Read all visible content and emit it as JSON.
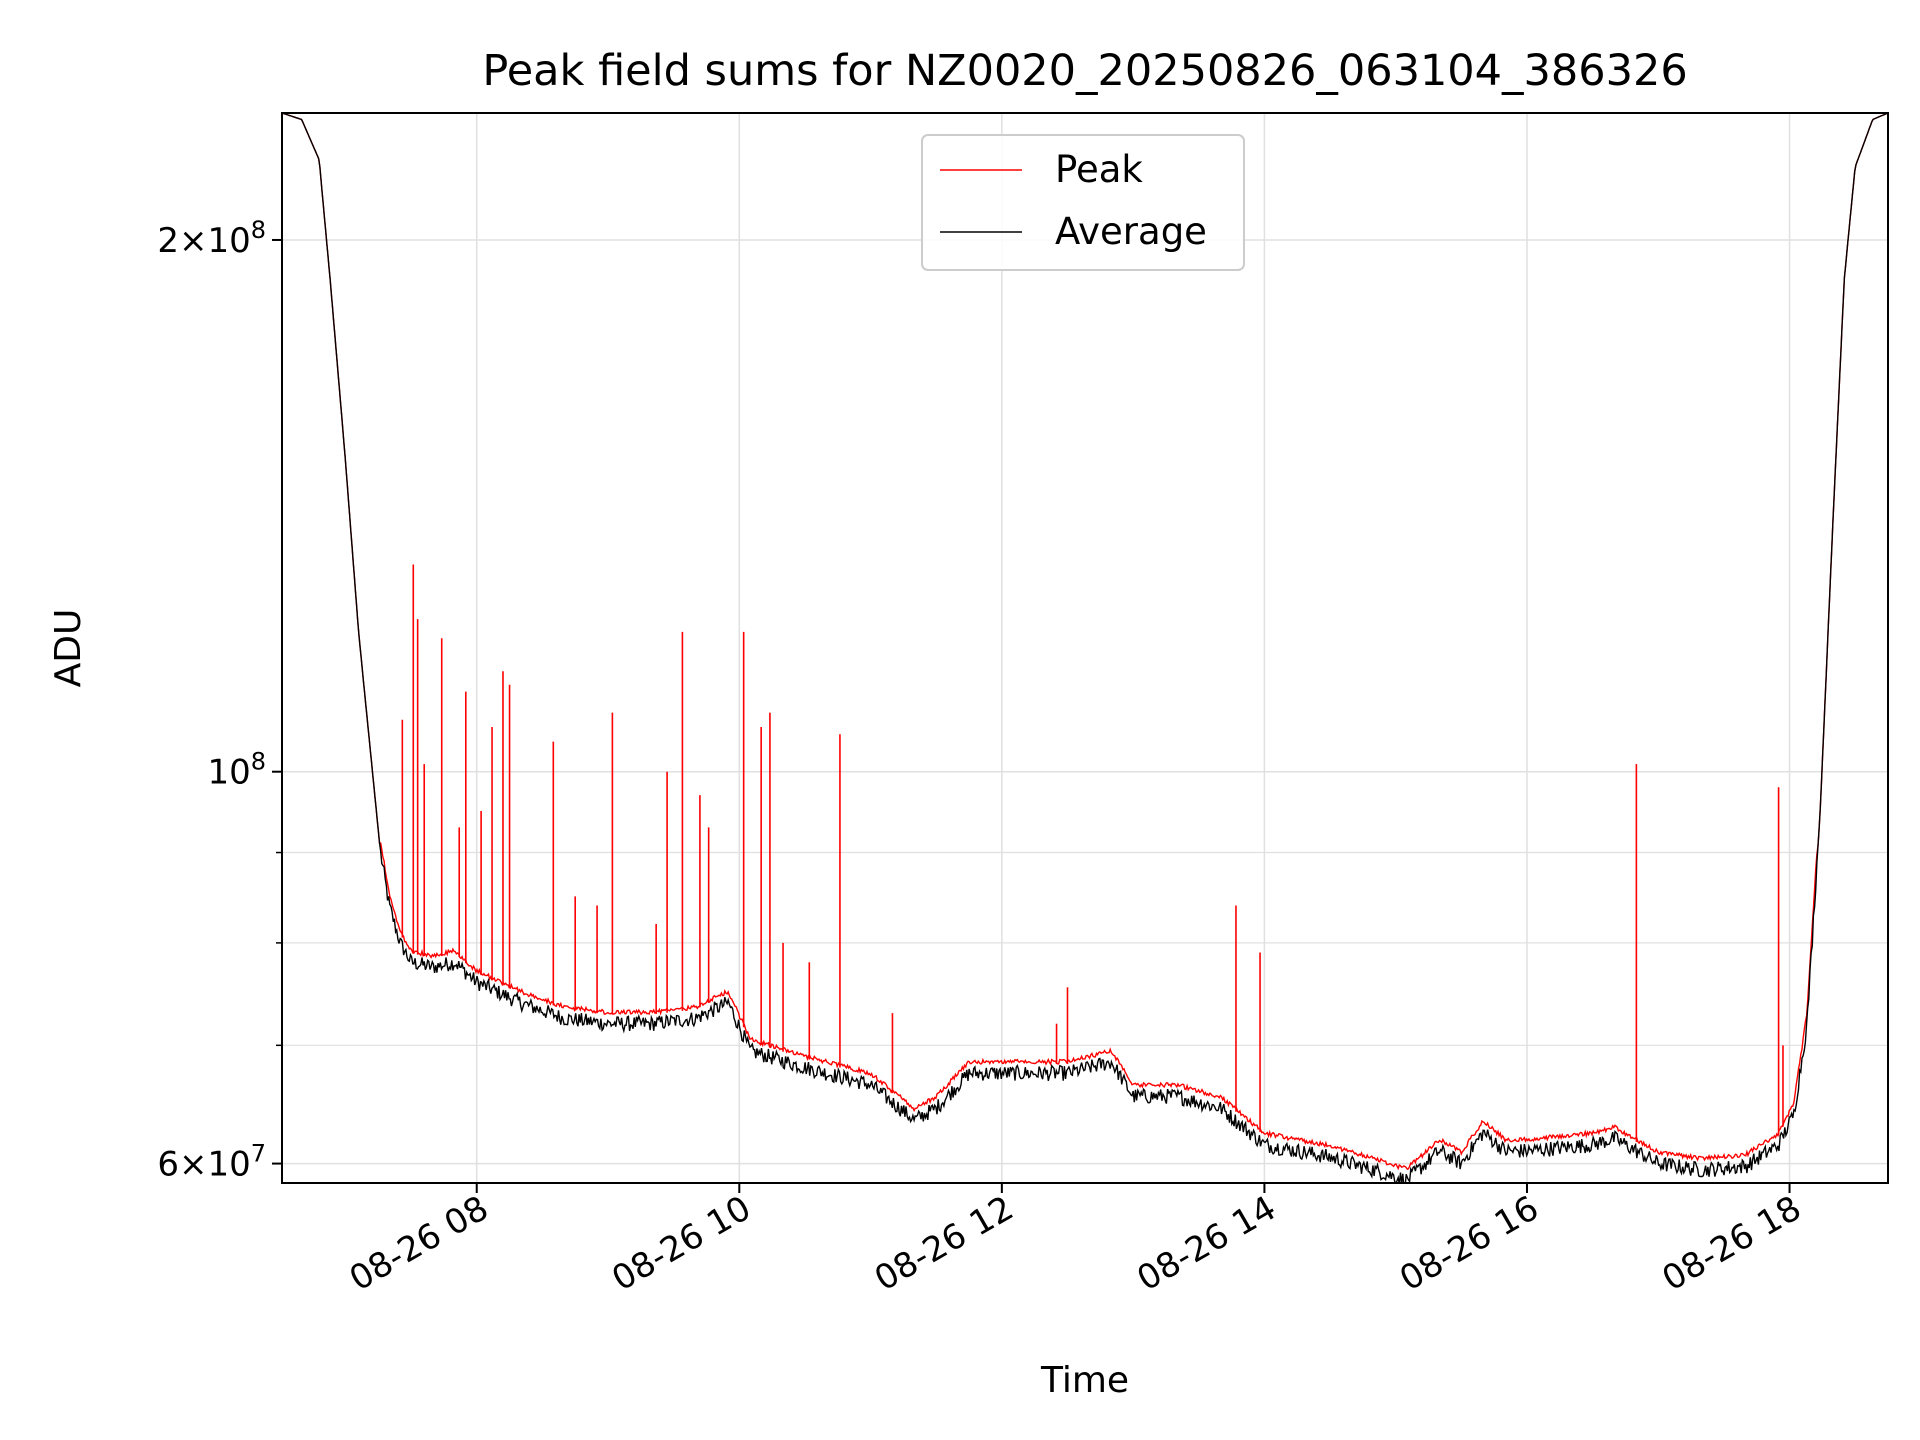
{
  "chart_data": {
    "type": "line",
    "title": "Peak field sums for NZ0020_20250826_063104_386326",
    "xlabel": "Time",
    "ylabel": "ADU",
    "yscale": "log",
    "xlim": [
      "2025-08-26 06:31",
      "2025-08-26 18:45"
    ],
    "ylim": [
      58500000,
      236000000
    ],
    "grid": true,
    "legend": {
      "placement": "top-center",
      "entries": [
        "Peak",
        "Average"
      ]
    },
    "colors": {
      "Peak": "#ff0000",
      "Average": "#000000",
      "grid": "#e0e0e0"
    },
    "x_ticks": [
      {
        "t": "2025-08-26 08:00",
        "label": "08-26 08"
      },
      {
        "t": "2025-08-26 10:00",
        "label": "08-26 10"
      },
      {
        "t": "2025-08-26 12:00",
        "label": "08-26 12"
      },
      {
        "t": "2025-08-26 14:00",
        "label": "08-26 14"
      },
      {
        "t": "2025-08-26 16:00",
        "label": "08-26 16"
      },
      {
        "t": "2025-08-26 18:00",
        "label": "08-26 18"
      }
    ],
    "y_major_ticks": [
      {
        "value": 60000000,
        "base": "6",
        "exp": "7"
      },
      {
        "value": 100000000,
        "base": "",
        "exp": "8"
      },
      {
        "value": 200000000,
        "base": "2",
        "exp": "8"
      }
    ],
    "y_minor_ticks": [
      70000000,
      80000000,
      90000000
    ],
    "series": [
      {
        "name": "Average",
        "x": [
          "2025-08-26 06:31",
          "2025-08-26 06:40",
          "2025-08-26 06:48",
          "2025-08-26 06:53",
          "2025-08-26 07:00",
          "2025-08-26 07:06",
          "2025-08-26 07:12",
          "2025-08-26 07:16",
          "2025-08-26 07:20",
          "2025-08-26 07:25",
          "2025-08-26 07:30",
          "2025-08-26 07:40",
          "2025-08-26 07:50",
          "2025-08-26 08:00",
          "2025-08-26 08:20",
          "2025-08-26 08:40",
          "2025-08-26 09:00",
          "2025-08-26 09:20",
          "2025-08-26 09:40",
          "2025-08-26 09:55",
          "2025-08-26 10:05",
          "2025-08-26 10:30",
          "2025-08-26 11:00",
          "2025-08-26 11:20",
          "2025-08-26 11:30",
          "2025-08-26 11:45",
          "2025-08-26 12:00",
          "2025-08-26 12:30",
          "2025-08-26 12:50",
          "2025-08-26 13:00",
          "2025-08-26 13:20",
          "2025-08-26 13:40",
          "2025-08-26 14:00",
          "2025-08-26 14:30",
          "2025-08-26 14:50",
          "2025-08-26 15:05",
          "2025-08-26 15:20",
          "2025-08-26 15:30",
          "2025-08-26 15:40",
          "2025-08-26 15:50",
          "2025-08-26 16:00",
          "2025-08-26 16:30",
          "2025-08-26 16:40",
          "2025-08-26 17:00",
          "2025-08-26 17:20",
          "2025-08-26 17:40",
          "2025-08-26 17:55",
          "2025-08-26 18:02",
          "2025-08-26 18:08",
          "2025-08-26 18:14",
          "2025-08-26 18:20",
          "2025-08-26 18:25",
          "2025-08-26 18:30",
          "2025-08-26 18:38",
          "2025-08-26 18:45"
        ],
        "y": [
          236000000,
          234000000,
          222000000,
          190000000,
          150000000,
          120000000,
          101000000,
          90000000,
          84000000,
          80000000,
          78000000,
          77500000,
          78000000,
          76000000,
          74000000,
          72500000,
          72000000,
          72000000,
          72500000,
          74000000,
          69500000,
          68000000,
          66500000,
          63500000,
          64500000,
          67500000,
          67500000,
          67500000,
          68500000,
          65500000,
          65500000,
          64500000,
          61500000,
          60500000,
          59500000,
          58700000,
          61000000,
          60000000,
          62500000,
          61000000,
          61000000,
          61500000,
          62000000,
          60000000,
          59500000,
          59800000,
          61500000,
          64000000,
          72000000,
          95000000,
          140000000,
          190000000,
          220000000,
          234000000,
          236000000
        ]
      },
      {
        "name": "Peak",
        "baseline_offset": 1.012,
        "spikes": [
          {
            "t": "2025-08-26 07:26",
            "y": 107000000
          },
          {
            "t": "2025-08-26 07:31",
            "y": 131000000
          },
          {
            "t": "2025-08-26 07:33",
            "y": 122000000
          },
          {
            "t": "2025-08-26 07:36",
            "y": 101000000
          },
          {
            "t": "2025-08-26 07:44",
            "y": 119000000
          },
          {
            "t": "2025-08-26 07:52",
            "y": 93000000
          },
          {
            "t": "2025-08-26 07:55",
            "y": 111000000
          },
          {
            "t": "2025-08-26 08:02",
            "y": 95000000
          },
          {
            "t": "2025-08-26 08:07",
            "y": 106000000
          },
          {
            "t": "2025-08-26 08:12",
            "y": 114000000
          },
          {
            "t": "2025-08-26 08:15",
            "y": 112000000
          },
          {
            "t": "2025-08-26 08:35",
            "y": 104000000
          },
          {
            "t": "2025-08-26 08:45",
            "y": 85000000
          },
          {
            "t": "2025-08-26 08:55",
            "y": 84000000
          },
          {
            "t": "2025-08-26 09:02",
            "y": 108000000
          },
          {
            "t": "2025-08-26 09:22",
            "y": 82000000
          },
          {
            "t": "2025-08-26 09:27",
            "y": 100000000
          },
          {
            "t": "2025-08-26 09:34",
            "y": 120000000
          },
          {
            "t": "2025-08-26 09:42",
            "y": 97000000
          },
          {
            "t": "2025-08-26 09:46",
            "y": 93000000
          },
          {
            "t": "2025-08-26 10:02",
            "y": 120000000
          },
          {
            "t": "2025-08-26 10:10",
            "y": 106000000
          },
          {
            "t": "2025-08-26 10:14",
            "y": 108000000
          },
          {
            "t": "2025-08-26 10:20",
            "y": 80000000
          },
          {
            "t": "2025-08-26 10:32",
            "y": 78000000
          },
          {
            "t": "2025-08-26 10:46",
            "y": 105000000
          },
          {
            "t": "2025-08-26 11:10",
            "y": 73000000
          },
          {
            "t": "2025-08-26 12:25",
            "y": 72000000
          },
          {
            "t": "2025-08-26 12:30",
            "y": 75500000
          },
          {
            "t": "2025-08-26 13:47",
            "y": 84000000
          },
          {
            "t": "2025-08-26 13:58",
            "y": 79000000
          },
          {
            "t": "2025-08-26 16:50",
            "y": 101000000
          },
          {
            "t": "2025-08-26 17:55",
            "y": 98000000
          },
          {
            "t": "2025-08-26 17:57",
            "y": 70000000
          }
        ]
      }
    ]
  }
}
